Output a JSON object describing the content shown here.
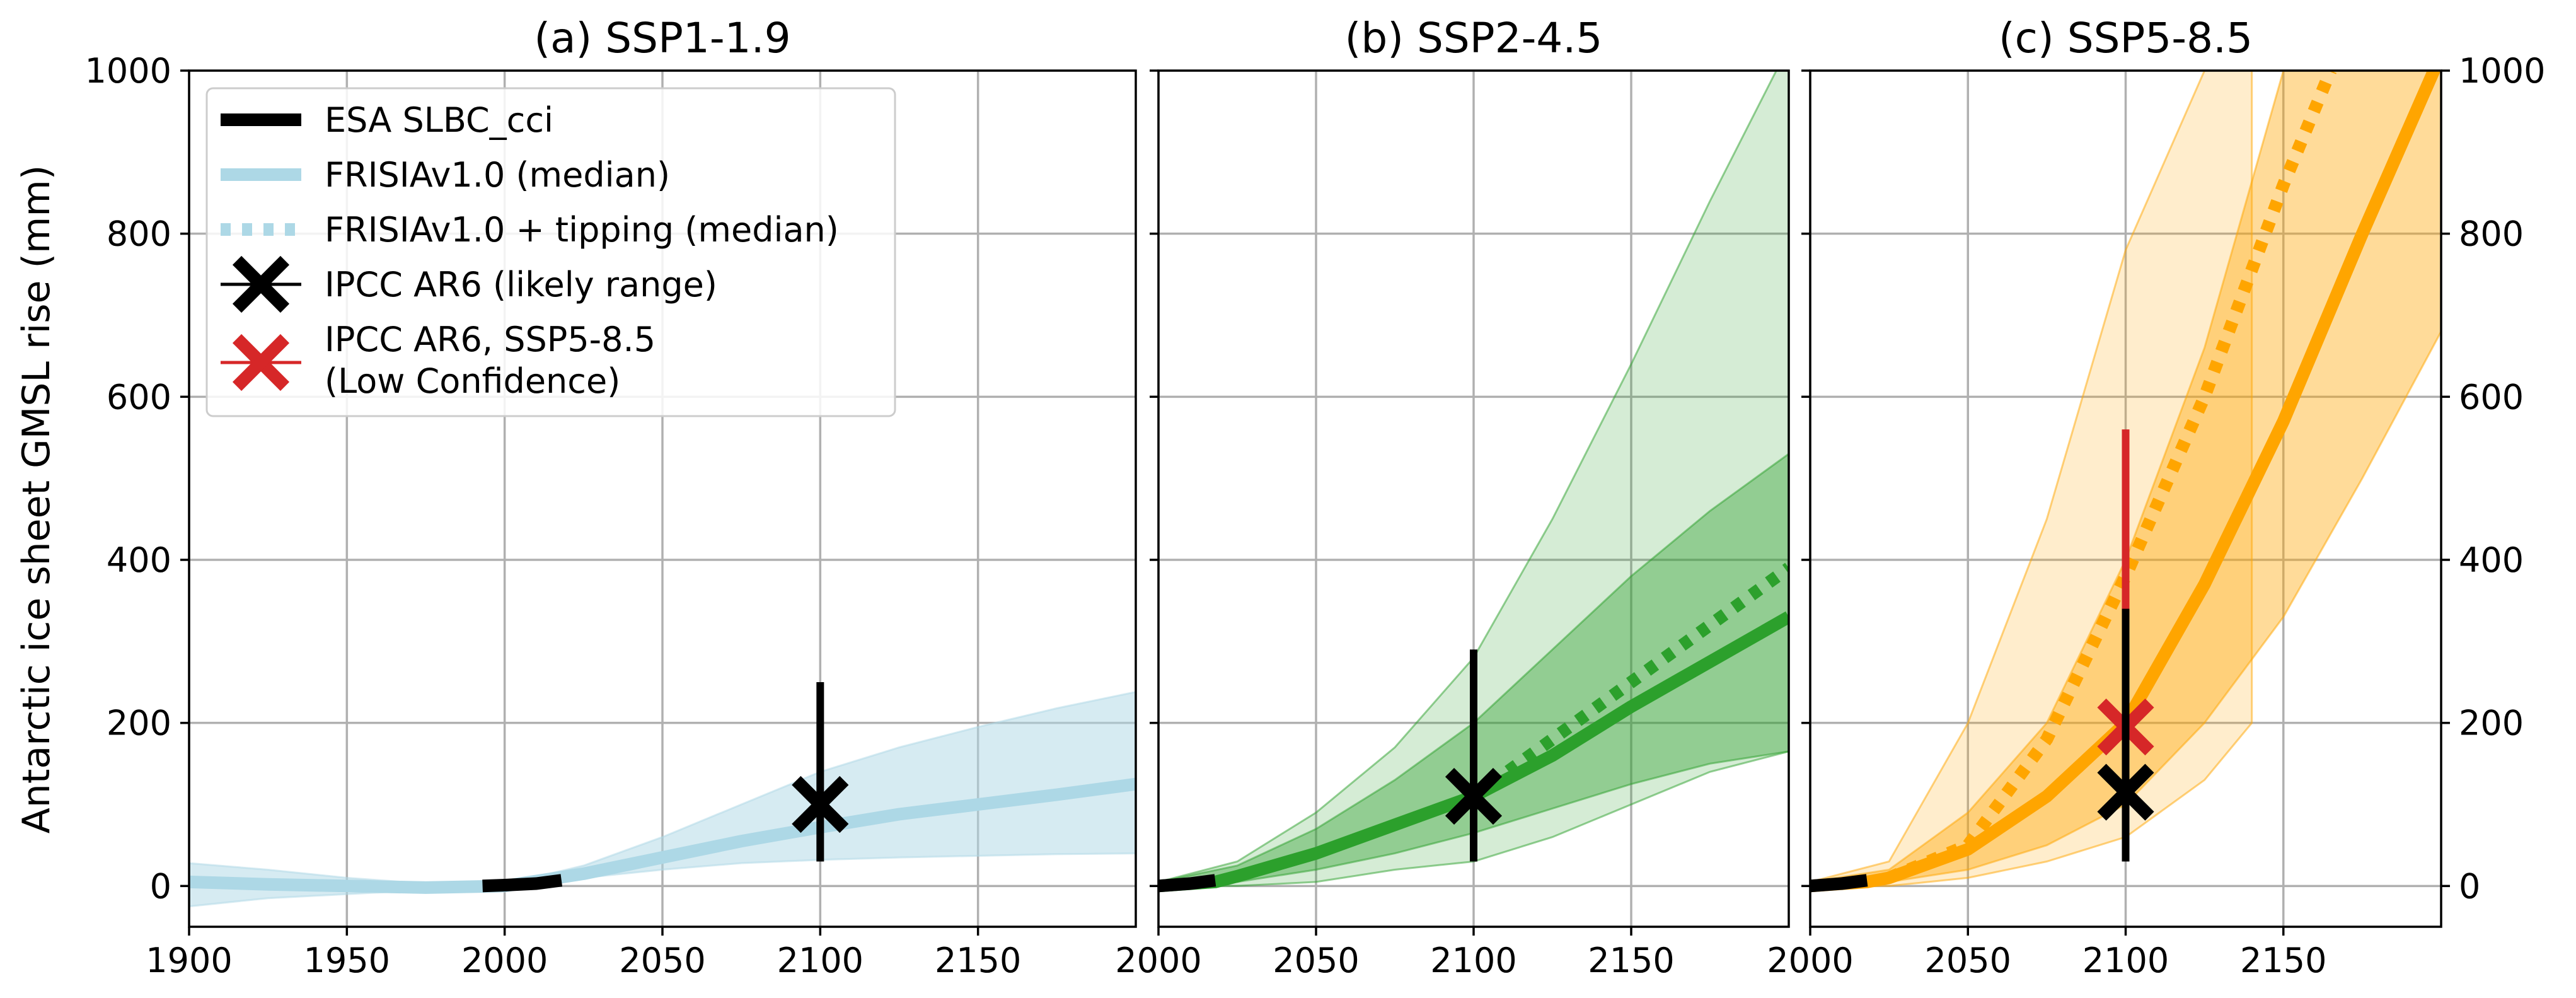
{
  "chart_data": {
    "type": "line",
    "ylabel": "Antarctic ice sheet GMSL rise (mm)",
    "ylim": [
      -50,
      1000
    ],
    "yticks": [
      0,
      200,
      400,
      600,
      800,
      1000
    ],
    "grid": true,
    "legend": {
      "placement": "top-left",
      "entries": [
        {
          "label": "ESA SLBC_cci",
          "style": "solid-thick",
          "color": "#000000"
        },
        {
          "label": "FRISIAv1.0 (median)",
          "style": "solid",
          "color": "#add8e6"
        },
        {
          "label": "FRISIAv1.0 + tipping (median)",
          "style": "dotted",
          "color": "#add8e6"
        },
        {
          "label": "IPCC AR6 (likely range)",
          "style": "x-marker",
          "color": "#000000"
        },
        {
          "label": "IPCC AR6, SSP5-8.5",
          "label2": "(Low Confidence)",
          "style": "x-marker",
          "color": "#d62728"
        }
      ]
    },
    "panels": [
      {
        "title": "(a) SSP1-1.9",
        "xlim": [
          1900,
          2200
        ],
        "xticks": [
          1900,
          1950,
          2000,
          2050,
          2100,
          2150
        ],
        "color": "#add8e6",
        "median": {
          "x": [
            1900,
            1925,
            1950,
            1975,
            2000,
            2025,
            2050,
            2075,
            2100,
            2125,
            2150,
            2175,
            2200
          ],
          "y": [
            5,
            2,
            0,
            -2,
            0,
            15,
            35,
            55,
            72,
            88,
            100,
            112,
            125
          ]
        },
        "bands": [
          {
            "name": "likely",
            "x": [
              1900,
              1925,
              1950,
              1975,
              2000,
              2025,
              2050,
              2075,
              2100,
              2125,
              2150,
              2175,
              2200
            ],
            "lower": [
              -25,
              -15,
              -10,
              -5,
              -3,
              10,
              20,
              28,
              32,
              35,
              37,
              39,
              40
            ],
            "upper": [
              28,
              20,
              10,
              3,
              2,
              25,
              60,
              100,
              140,
              170,
              195,
              218,
              238
            ]
          }
        ],
        "obs": {
          "x": [
            1993,
            2000,
            2010,
            2018
          ],
          "y": [
            0,
            1,
            3,
            7
          ]
        },
        "ipcc": {
          "x": 2100,
          "median": 100,
          "low": 30,
          "high": 250
        }
      },
      {
        "title": "(b) SSP2-4.5",
        "xlim": [
          2000,
          2200
        ],
        "xticks": [
          2000,
          2050,
          2100,
          2150
        ],
        "color": "#2ca02c",
        "median": {
          "x": [
            2000,
            2018,
            2025,
            2050,
            2075,
            2100,
            2125,
            2150,
            2175,
            2200
          ],
          "y": [
            0,
            5,
            12,
            40,
            75,
            110,
            160,
            220,
            275,
            330
          ]
        },
        "tipping": {
          "x": [
            2100,
            2125,
            2150,
            2175,
            2200
          ],
          "y": [
            110,
            180,
            250,
            320,
            390
          ]
        },
        "bands": [
          {
            "name": "very-likely",
            "x": [
              2000,
              2025,
              2050,
              2075,
              2100,
              2125,
              2150,
              2175,
              2200
            ],
            "lower": [
              0,
              0,
              5,
              20,
              30,
              60,
              100,
              140,
              165
            ],
            "upper": [
              5,
              30,
              90,
              170,
              280,
              450,
              640,
              840,
              1030
            ]
          },
          {
            "name": "likely",
            "x": [
              2000,
              2025,
              2050,
              2075,
              2100,
              2125,
              2150,
              2175,
              2200
            ],
            "lower": [
              0,
              5,
              20,
              40,
              65,
              95,
              125,
              150,
              165
            ],
            "upper": [
              5,
              25,
              70,
              130,
              200,
              290,
              380,
              460,
              530
            ]
          }
        ],
        "obs": {
          "x": [
            2000,
            2010,
            2018
          ],
          "y": [
            0,
            3,
            7
          ]
        },
        "ipcc": {
          "x": 2100,
          "median": 110,
          "low": 30,
          "high": 290
        }
      },
      {
        "title": "(c) SSP5-8.5",
        "xlim": [
          2000,
          2200
        ],
        "xticks": [
          2000,
          2050,
          2100,
          2150
        ],
        "color": "#ffa500",
        "median": {
          "x": [
            2000,
            2018,
            2025,
            2050,
            2075,
            2100,
            2125,
            2150,
            2175,
            2200
          ],
          "y": [
            0,
            5,
            10,
            45,
            110,
            200,
            370,
            570,
            800,
            1020
          ]
        },
        "tipping": {
          "x": [
            2025,
            2050,
            2075,
            2100,
            2125,
            2150,
            2165
          ],
          "y": [
            10,
            50,
            180,
            380,
            600,
            860,
            1000
          ]
        },
        "bands": [
          {
            "name": "very-likely",
            "x": [
              2000,
              2025,
              2050,
              2075,
              2100,
              2125,
              2140
            ],
            "lower": [
              0,
              0,
              10,
              30,
              60,
              130,
              200
            ],
            "upper": [
              5,
              30,
              200,
              450,
              780,
              1000,
              1000
            ]
          },
          {
            "name": "likely",
            "x": [
              2000,
              2025,
              2050,
              2075,
              2100,
              2125,
              2150,
              2175,
              2200
            ],
            "lower": [
              0,
              5,
              20,
              50,
              100,
              200,
              330,
              500,
              680
            ],
            "upper": [
              5,
              20,
              90,
              200,
              400,
              660,
              1000,
              1000,
              1000
            ]
          }
        ],
        "obs": {
          "x": [
            2000,
            2010,
            2018
          ],
          "y": [
            0,
            3,
            7
          ]
        },
        "ipcc": {
          "x": 2100,
          "median": 115,
          "low": 30,
          "high": 340
        },
        "ipcc_low_conf": {
          "x": 2100,
          "median": 195,
          "low": 30,
          "high": 560
        }
      }
    ]
  }
}
